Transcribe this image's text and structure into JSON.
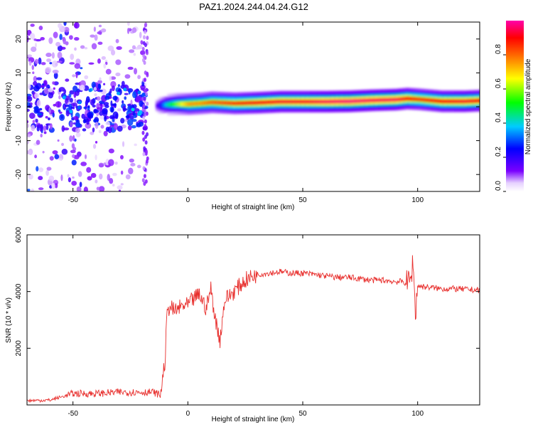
{
  "figure": {
    "title": "PAZ1.2024.244.04.24.G12"
  },
  "colors": {
    "background": "#ffffff",
    "snr_line": "#e8302e",
    "axis": "#000000"
  },
  "chart_data": [
    {
      "type": "heatmap",
      "name": "spectrogram",
      "xlabel": "Height of straight line (km)",
      "ylabel": "Frequency (Hz)",
      "xlim": [
        -70,
        127
      ],
      "ylim": [
        -25,
        25
      ],
      "xticks": [
        -50,
        0,
        50,
        100
      ],
      "yticks": [
        -20,
        -10,
        0,
        10,
        20
      ],
      "colormap": "rainbow (white-purple-blue-cyan-green-yellow-red-magenta)",
      "ridge_note": "strong narrowband component near 0-2 Hz from about -10 km to 127 km; diffuse scatter between -70 and -18 km",
      "ridge": {
        "x": [
          -14,
          -10,
          -5,
          0,
          5,
          10,
          20,
          30,
          40,
          50,
          60,
          70,
          80,
          90,
          95,
          100,
          110,
          120,
          127
        ],
        "freq_hz": [
          0.3,
          0.6,
          0.8,
          0.8,
          1.0,
          1.3,
          1.0,
          1.2,
          1.5,
          1.5,
          1.5,
          1.6,
          1.9,
          2.1,
          2.4,
          2.2,
          1.6,
          1.6,
          1.8
        ],
        "amplitude": [
          0.15,
          0.4,
          0.6,
          0.75,
          0.75,
          0.8,
          0.85,
          0.9,
          0.92,
          0.92,
          0.95,
          0.97,
          0.95,
          0.95,
          0.9,
          0.85,
          0.9,
          0.92,
          0.9
        ]
      }
    },
    {
      "type": "colorbar",
      "name": "colorbar",
      "label": "Normalized spectral amplitude",
      "range": [
        0,
        1
      ],
      "ticks": [
        "0.0",
        "0.2",
        "0.4",
        "0.6",
        "0.8"
      ]
    },
    {
      "type": "line",
      "name": "snr",
      "xlabel": "Height of straight line (km)",
      "ylabel": "SNR (10 * v/v)",
      "xlim": [
        -70,
        127
      ],
      "ylim": [
        0,
        6000
      ],
      "xticks": [
        -50,
        0,
        50,
        100
      ],
      "yticks": [
        2000,
        4000,
        6000
      ],
      "series": [
        {
          "color": "#e8302e",
          "x": [
            -70,
            -60,
            -50,
            -40,
            -30,
            -20,
            -15,
            -12,
            -10,
            -9,
            -8,
            -6,
            -4,
            -2,
            0,
            2,
            5,
            8,
            10,
            12,
            14,
            16,
            20,
            25,
            30,
            35,
            40,
            45,
            50,
            55,
            60,
            65,
            70,
            75,
            80,
            85,
            90,
            93,
            95,
            97,
            98,
            99,
            100,
            105,
            110,
            115,
            120,
            127
          ],
          "values": [
            150,
            170,
            400,
            400,
            450,
            450,
            450,
            350,
            1500,
            3200,
            3500,
            3300,
            3400,
            3500,
            3500,
            3700,
            3900,
            3400,
            4100,
            3000,
            2300,
            3700,
            4000,
            4400,
            4600,
            4650,
            4700,
            4650,
            4650,
            4600,
            4550,
            4500,
            4500,
            4450,
            4400,
            4400,
            4350,
            4350,
            4300,
            4400,
            5100,
            3200,
            4200,
            4150,
            4100,
            4100,
            4080,
            4050
          ]
        }
      ]
    }
  ]
}
